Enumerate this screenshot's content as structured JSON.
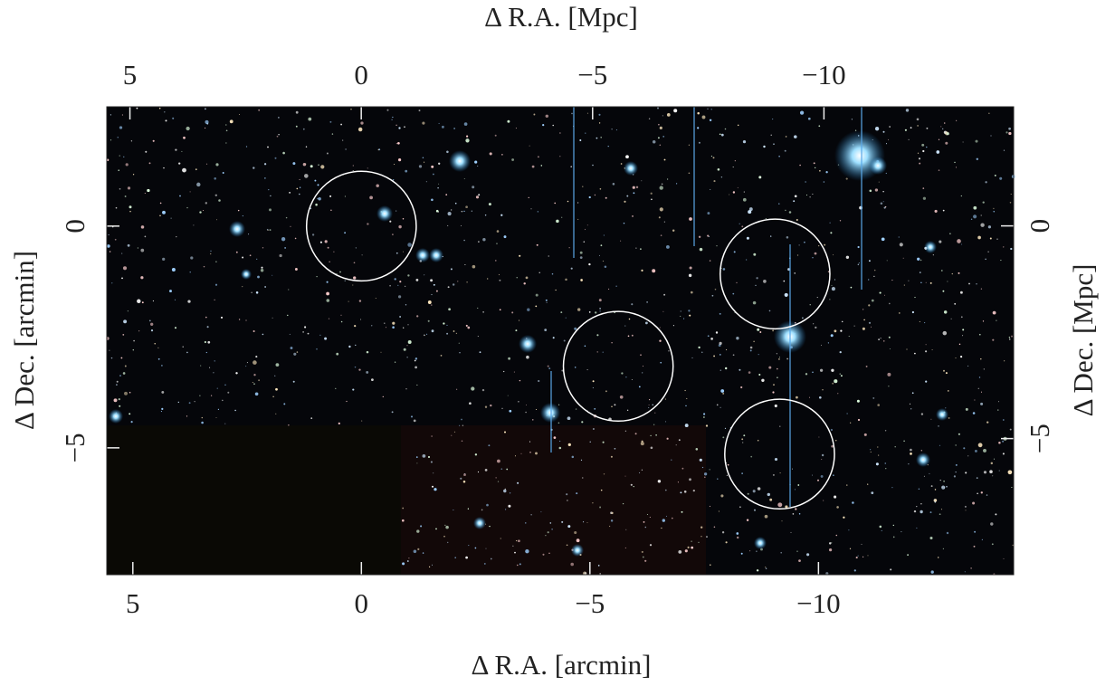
{
  "chart_data": {
    "type": "sky-image",
    "x_label": "Δ R.A.  [arcmin]",
    "x2_label": "Δ R.A.  [Mpc]",
    "y_label": "Δ Dec.  [arcmin]",
    "y2_label": "Δ Dec.  [Mpc]",
    "xlim": [
      5.57,
      -14.27
    ],
    "xticks": [
      5,
      0,
      {
        "value": -5,
        "label": "−5"
      },
      {
        "value": -10,
        "label": "−10"
      }
    ],
    "x2lim": [
      5.5,
      -14.1
    ],
    "x2ticks": [
      5,
      0,
      {
        "value": -5,
        "label": "−5"
      },
      {
        "value": -10,
        "label": "−10"
      }
    ],
    "ylim": [
      2.69,
      -7.86
    ],
    "yticks": [
      0,
      {
        "value": -5,
        "label": "−5"
      }
    ],
    "y2lim": [
      2.8,
      -8.2
    ],
    "y2ticks": [
      0,
      {
        "value": -5,
        "label": "−5"
      }
    ],
    "circles": [
      {
        "x": 0,
        "y": 0,
        "r": 1.2
      },
      {
        "x": -5.62,
        "y": -3.16,
        "r": 1.2
      },
      {
        "x": -9.05,
        "y": -1.08,
        "r": 1.2
      },
      {
        "x": -9.15,
        "y": -5.14,
        "r": 1.2
      }
    ],
    "circle_color": "#ffffff"
  }
}
